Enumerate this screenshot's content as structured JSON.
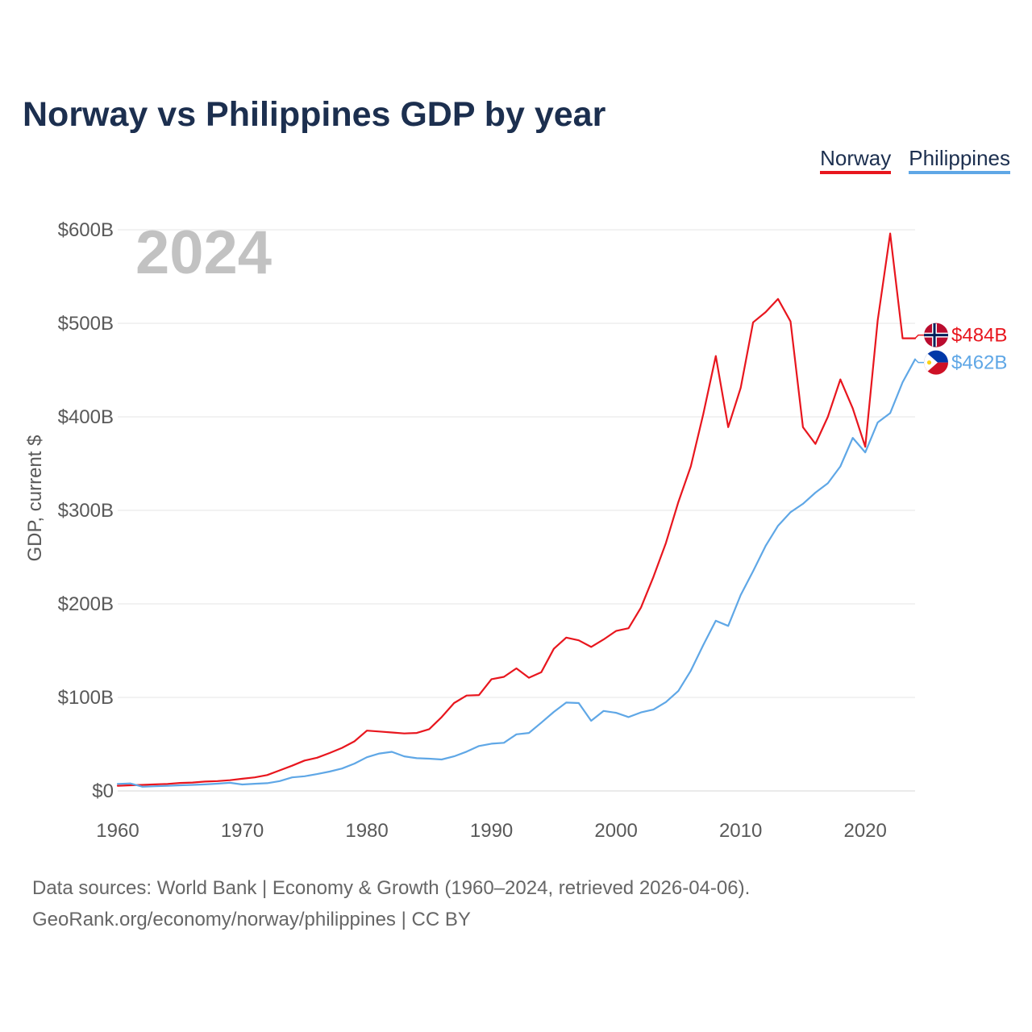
{
  "chart_data": {
    "type": "line",
    "title": "Norway vs Philippines GDP by year",
    "xlabel": "",
    "ylabel": "GDP, current $",
    "year_label": "2024",
    "grid": true,
    "xlim": [
      1960,
      2024
    ],
    "ylim": [
      0,
      600
    ],
    "x_ticks": [
      1960,
      1970,
      1980,
      1990,
      2000,
      2010,
      2020
    ],
    "y_ticks": [
      0,
      100,
      200,
      300,
      400,
      500,
      600
    ],
    "y_tick_labels": [
      "$0",
      "$100B",
      "$200B",
      "$300B",
      "$400B",
      "$500B",
      "$600B"
    ],
    "x": [
      1960,
      1961,
      1962,
      1963,
      1964,
      1965,
      1966,
      1967,
      1968,
      1969,
      1970,
      1971,
      1972,
      1973,
      1974,
      1975,
      1976,
      1977,
      1978,
      1979,
      1980,
      1981,
      1982,
      1983,
      1984,
      1985,
      1986,
      1987,
      1988,
      1989,
      1990,
      1991,
      1992,
      1993,
      1994,
      1995,
      1996,
      1997,
      1998,
      1999,
      2000,
      2001,
      2002,
      2003,
      2004,
      2005,
      2006,
      2007,
      2008,
      2009,
      2010,
      2011,
      2012,
      2013,
      2014,
      2015,
      2016,
      2017,
      2018,
      2019,
      2020,
      2021,
      2022,
      2023,
      2024
    ],
    "series": [
      {
        "name": "Norway",
        "color": "#e8161e",
        "icon": "norway-flag-icon",
        "end_label": "$484B",
        "values": [
          5.5,
          6.0,
          6.5,
          7.0,
          7.5,
          8.5,
          9.0,
          10.0,
          10.5,
          11.5,
          13.0,
          14.5,
          17.0,
          22.0,
          27.0,
          32.5,
          35.5,
          40.5,
          46.0,
          53.0,
          64.5,
          63.5,
          62.5,
          61.5,
          62.0,
          66.0,
          79.0,
          94.0,
          102.0,
          102.5,
          119.5,
          122.0,
          131.0,
          121.0,
          127.0,
          152.0,
          164.0,
          161.0,
          154.0,
          162.0,
          171.0,
          174.0,
          196.0,
          229.0,
          265.0,
          309.0,
          347.0,
          403.0,
          465.0,
          389.0,
          431.0,
          501.0,
          512.0,
          526.0,
          502.0,
          389.0,
          371.0,
          400.0,
          440.0,
          409.0,
          368.0,
          503.0,
          596.0,
          484.0,
          484.0
        ]
      },
      {
        "name": "Philippines",
        "color": "#5fa7e6",
        "icon": "philippines-flag-icon",
        "end_label": "$462B",
        "values": [
          7.5,
          8.0,
          4.5,
          5.0,
          5.5,
          6.0,
          6.5,
          7.0,
          7.8,
          8.7,
          6.9,
          7.7,
          8.3,
          10.5,
          14.5,
          15.7,
          18.0,
          20.7,
          24.0,
          29.2,
          36.0,
          40.0,
          41.8,
          37.0,
          35.0,
          34.5,
          33.6,
          37.0,
          42.0,
          48.0,
          50.5,
          51.5,
          60.5,
          62.0,
          73.0,
          84.5,
          94.5,
          94.0,
          75.0,
          85.5,
          83.5,
          79.0,
          84.0,
          87.0,
          95.0,
          107.0,
          128.5,
          156.0,
          182.0,
          176.5,
          209.5,
          235.0,
          262.0,
          283.5,
          298.0,
          307.0,
          319.0,
          329.0,
          347.0,
          377.5,
          362.0,
          394.0,
          404.0,
          437.0,
          461.5
        ]
      }
    ]
  },
  "footer": {
    "source": "Data sources: World Bank | Economy & Growth (1960–2024, retrieved 2026-04-06).",
    "credit": "GeoRank.org/economy/norway/philippines | CC BY"
  }
}
